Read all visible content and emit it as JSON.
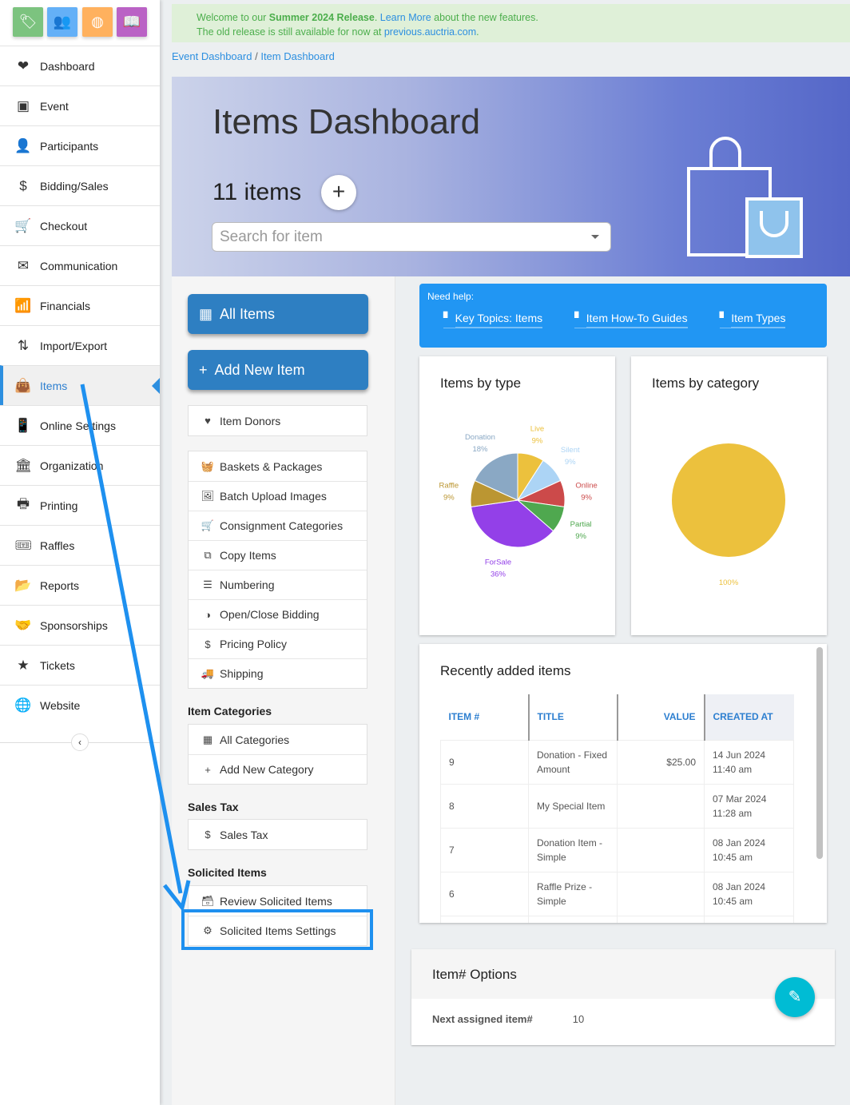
{
  "app_tiles": [
    {
      "icon": "tag-icon",
      "color": "#7cc37f"
    },
    {
      "icon": "people-icon",
      "color": "#64b0f7"
    },
    {
      "icon": "globe-icon",
      "color": "#ffb15e"
    },
    {
      "icon": "book-reader-icon",
      "color": "#ba62c5"
    }
  ],
  "sidebar": {
    "items": [
      {
        "label": "Dashboard",
        "icon": "heart-handshake-icon"
      },
      {
        "label": "Event",
        "icon": "calendar-star-icon"
      },
      {
        "label": "Participants",
        "icon": "person-icon"
      },
      {
        "label": "Bidding/Sales",
        "icon": "dollar-icon"
      },
      {
        "label": "Checkout",
        "icon": "cart-icon"
      },
      {
        "label": "Communication",
        "icon": "envelope-open-icon"
      },
      {
        "label": "Financials",
        "icon": "chart-icon"
      },
      {
        "label": "Import/Export",
        "icon": "import-export-icon"
      },
      {
        "label": "Items",
        "icon": "shopping-bag-icon",
        "active": true
      },
      {
        "label": "Online Settings",
        "icon": "mobile-settings-icon"
      },
      {
        "label": "Organization",
        "icon": "building-icon"
      },
      {
        "label": "Printing",
        "icon": "printer-icon"
      },
      {
        "label": "Raffles",
        "icon": "ticket-raffle-icon"
      },
      {
        "label": "Reports",
        "icon": "folder-open-icon"
      },
      {
        "label": "Sponsorships",
        "icon": "handshake-icon"
      },
      {
        "label": "Tickets",
        "icon": "ticket-star-icon"
      },
      {
        "label": "Website",
        "icon": "globe-icon"
      }
    ]
  },
  "banner": {
    "pre": "Welcome to our ",
    "bold": "Summer 2024 Release",
    "dot": ". ",
    "link1": "Learn More",
    "post1": " about the new features.",
    "line2": "The old release is still available for now at ",
    "link2": "previous.auctria.com",
    "end": "."
  },
  "breadcrumb": {
    "first": "Event Dashboard",
    "sep": "/",
    "second": "Item Dashboard"
  },
  "hero": {
    "title": "Items Dashboard",
    "count": "11 items",
    "add": "+",
    "search_placeholder": "Search for item"
  },
  "left_panel": {
    "all_items": "All Items",
    "add_new": "Add New Item",
    "item_donors": "Item Donors",
    "tools": [
      "Baskets & Packages",
      "Batch Upload Images",
      "Consignment Categories",
      "Copy Items",
      "Numbering",
      "Open/Close Bidding",
      "Pricing Policy",
      "Shipping"
    ],
    "cat_heading": "Item Categories",
    "categories": [
      "All Categories",
      "Add New Category"
    ],
    "tax_heading": "Sales Tax",
    "tax": [
      "Sales Tax"
    ],
    "sol_heading": "Solicited Items",
    "solicited": [
      "Review Solicited Items",
      "Solicited Items Settings"
    ]
  },
  "help": {
    "title": "Need help:",
    "links": [
      "Key Topics: Items",
      "Item How-To Guides",
      "Item Types"
    ]
  },
  "chart_data": [
    {
      "type": "pie",
      "title": "Items by type",
      "slices": [
        {
          "label": "Live",
          "value": 9,
          "color": "#ecc13d"
        },
        {
          "label": "Silent",
          "value": 9,
          "color": "#acd4f5"
        },
        {
          "label": "Online",
          "value": 9,
          "color": "#cc4a4a"
        },
        {
          "label": "Partial",
          "value": 9,
          "color": "#4fa84f"
        },
        {
          "label": "ForSale",
          "value": 36,
          "color": "#9340e8"
        },
        {
          "label": "Raffle",
          "value": 9,
          "color": "#bb9632"
        },
        {
          "label": "Donation",
          "value": 18,
          "color": "#8aa8c4"
        }
      ]
    },
    {
      "type": "pie",
      "title": "Items by category",
      "slices": [
        {
          "label": "",
          "value": 100,
          "color": "#ecc13d"
        }
      ]
    }
  ],
  "recent": {
    "title": "Recently added items",
    "columns": [
      "ITEM #",
      "TITLE",
      "VALUE",
      "CREATED AT"
    ],
    "rows": [
      [
        "9",
        "Donation - Fixed Amount",
        "$25.00",
        "14 Jun 2024 11:40 am"
      ],
      [
        "8",
        "My Special Item",
        "",
        "07 Mar 2024 11:28 am"
      ],
      [
        "7",
        "Donation Item - Simple",
        "",
        "08 Jan 2024 10:45 am"
      ],
      [
        "6",
        "Raffle Prize - Simple",
        "",
        "08 Jan 2024 10:45 am"
      ]
    ]
  },
  "options": {
    "title": "Item# Options",
    "label": "Next assigned item#",
    "value": "10"
  }
}
